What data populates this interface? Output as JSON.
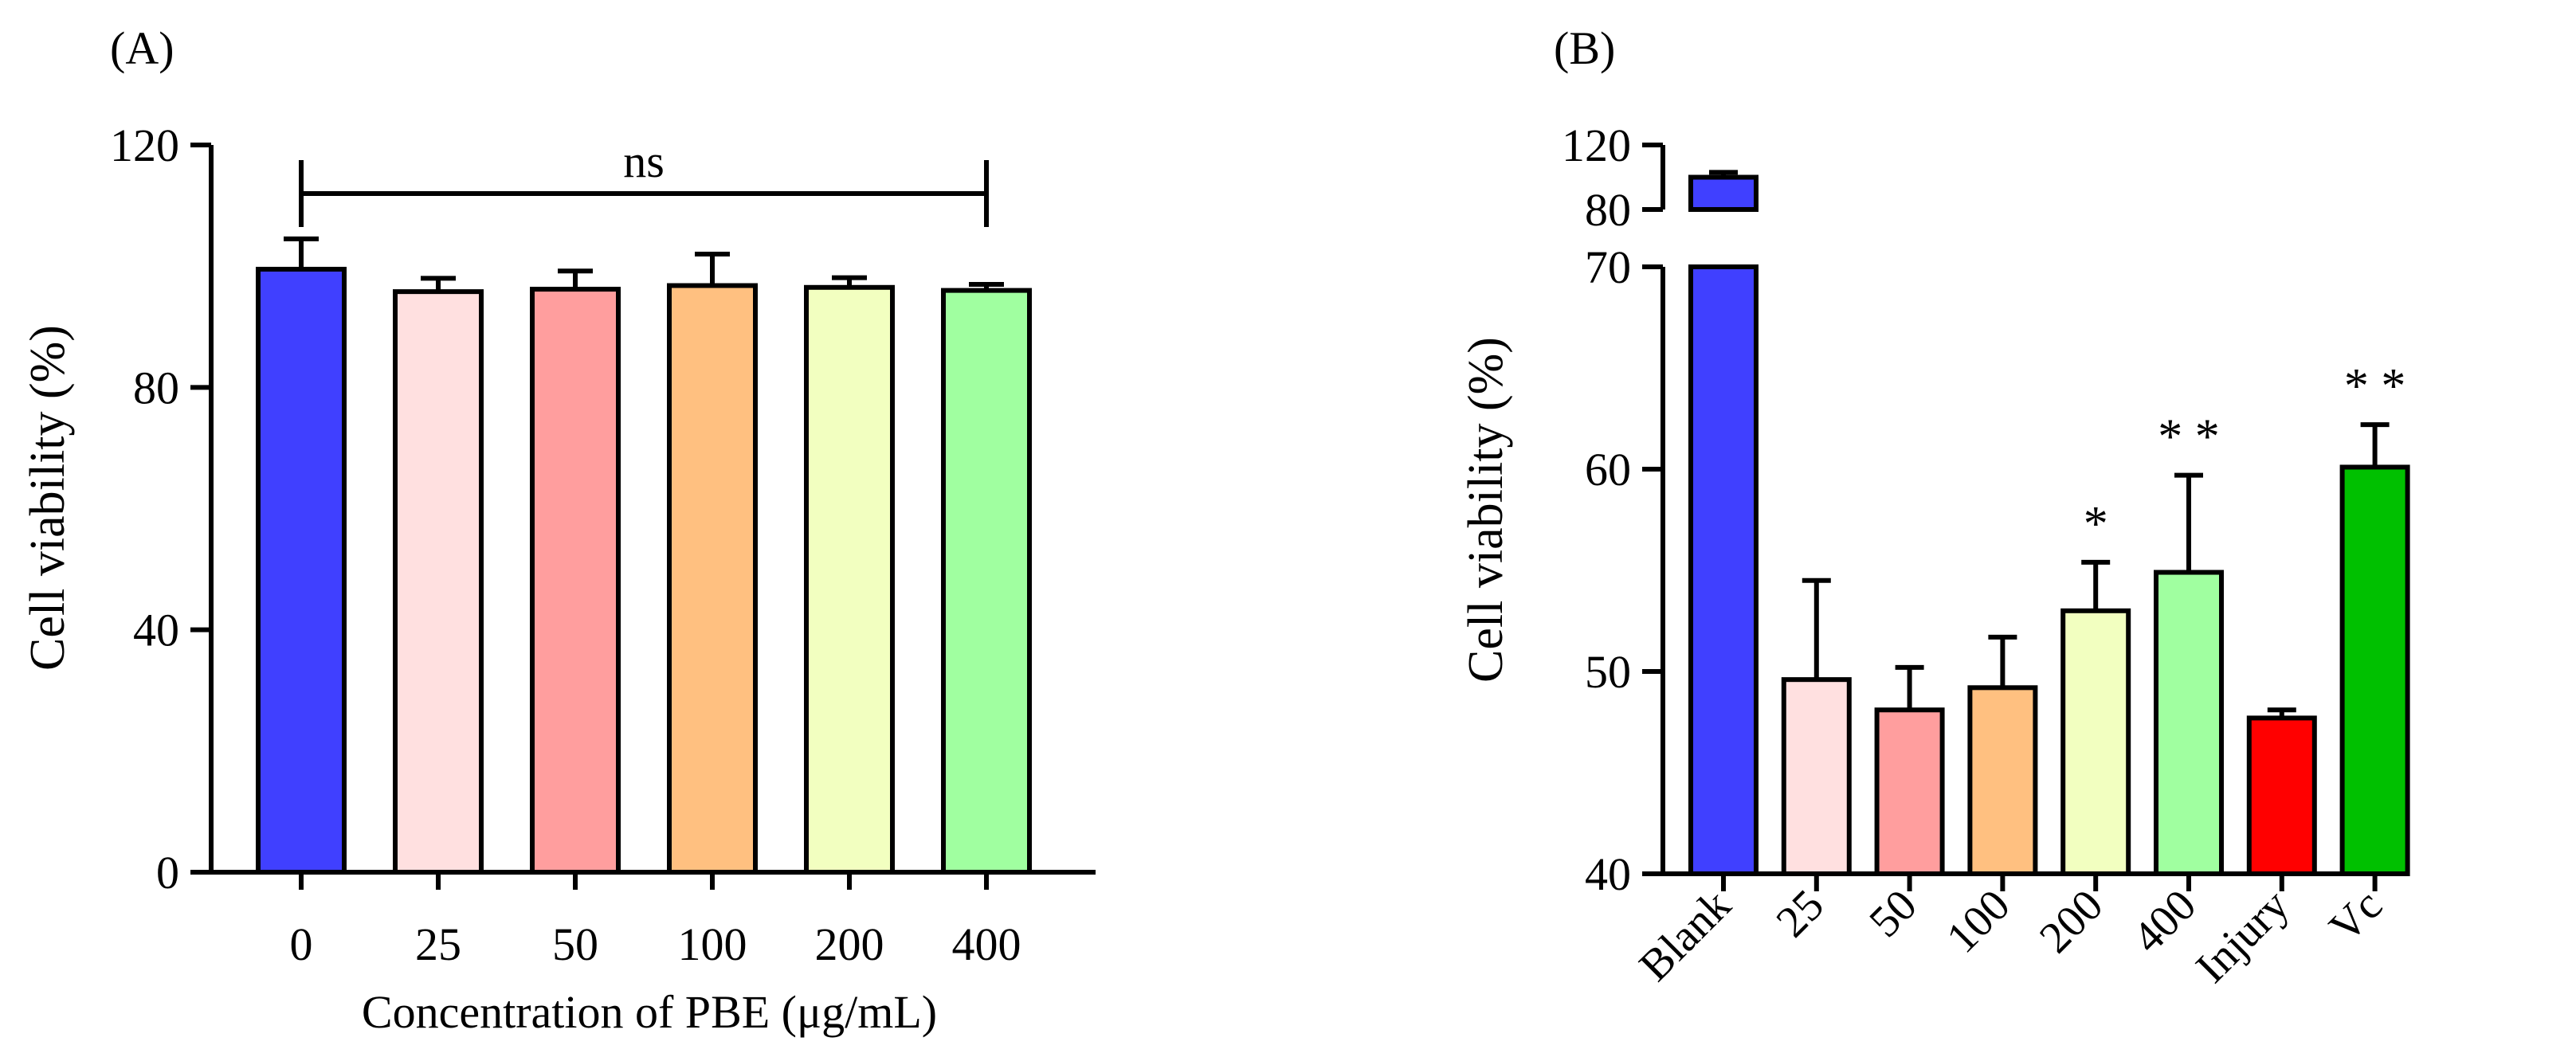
{
  "chart_data": [
    {
      "type": "bar",
      "panel_label": "(A)",
      "title": "",
      "xlabel": "Concentration of PBE (μg/mL)",
      "ylabel": "Cell viability (%)",
      "ylim": [
        0,
        120
      ],
      "yticks": [
        0,
        40,
        80,
        120
      ],
      "categories": [
        "0",
        "25",
        "50",
        "100",
        "200",
        "400"
      ],
      "values": [
        99.5,
        95.8,
        96.2,
        96.8,
        96.5,
        96.0
      ],
      "errors": [
        5.0,
        2.2,
        3.0,
        5.2,
        1.6,
        1.0
      ],
      "colors": [
        "#4040ff",
        "#ffe0e0",
        "#ff9e9e",
        "#ffc080",
        "#f2ffc0",
        "#a0ffa0"
      ],
      "annotations": [
        {
          "text": "ns",
          "from_category": "0",
          "to_category": "400"
        }
      ],
      "grid": false
    },
    {
      "type": "bar",
      "panel_label": "(B)",
      "title": "",
      "xlabel": "",
      "ylabel": "Cell viability (%)",
      "ylim": [
        40,
        120
      ],
      "axis_break": [
        70,
        80
      ],
      "yticks": [
        40,
        50,
        60,
        70,
        80,
        120
      ],
      "categories": [
        "Blank",
        "25",
        "50",
        "100",
        "200",
        "400",
        "Injury",
        "Vc"
      ],
      "values": [
        100,
        49.6,
        48.1,
        49.2,
        53.0,
        54.9,
        47.7,
        60.1
      ],
      "errors": [
        3.0,
        4.9,
        2.1,
        2.5,
        2.4,
        4.8,
        0.4,
        2.1
      ],
      "colors": [
        "#4040ff",
        "#ffe0e0",
        "#ff9e9e",
        "#ffc080",
        "#f2ffc0",
        "#a0ffa0",
        "#ff0000",
        "#00c000"
      ],
      "annotations": [
        "",
        "",
        "",
        "",
        "*",
        "* *",
        "",
        "* *"
      ],
      "grid": false
    }
  ]
}
